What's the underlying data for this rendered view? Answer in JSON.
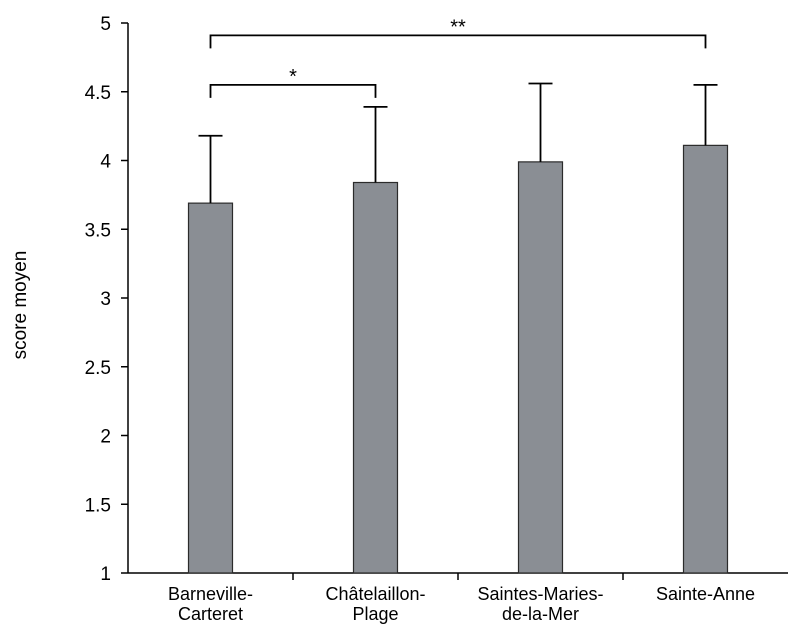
{
  "chart_data": {
    "type": "bar",
    "title": "",
    "xlabel": "",
    "ylabel": "score moyen",
    "ylim": [
      1,
      5
    ],
    "yticks": [
      "1",
      "1.5",
      "2",
      "2.5",
      "3",
      "3.5",
      "4",
      "4.5",
      "5"
    ],
    "categories": [
      [
        "Barneville-",
        "Carteret"
      ],
      [
        "Châtelaillon-",
        "Plage"
      ],
      [
        "Saintes-Maries-",
        "de-la-Mer"
      ],
      [
        "Sainte-Anne"
      ]
    ],
    "values": [
      3.69,
      3.84,
      3.99,
      4.11
    ],
    "error_upper": [
      4.18,
      4.39,
      4.56,
      4.55
    ],
    "grid": false,
    "bar_color": "#8a8e94",
    "significance": [
      {
        "from": 0,
        "to": 1,
        "label": "*",
        "y": 4.55
      },
      {
        "from": 0,
        "to": 3,
        "label": "**",
        "y": 4.91
      }
    ]
  }
}
